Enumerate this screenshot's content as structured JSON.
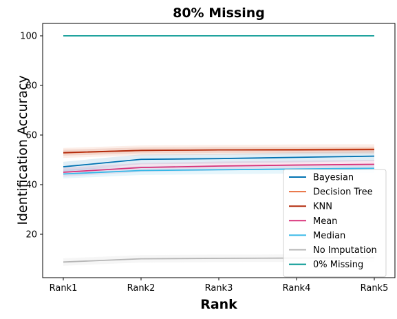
{
  "chart_data": {
    "type": "line",
    "title": "80% Missing",
    "xlabel": "Rank",
    "ylabel": "Identification Accuracy",
    "categories": [
      "Rank1",
      "Rank2",
      "Rank3",
      "Rank4",
      "Rank5"
    ],
    "yticks": [
      20,
      40,
      60,
      80,
      100
    ],
    "ylim": [
      2.5,
      105
    ],
    "grid": false,
    "legend_position": "lower-right",
    "series": [
      {
        "name": "Bayesian",
        "color": "#0072b2",
        "values": [
          47.2,
          50.2,
          50.5,
          51.0,
          51.5
        ],
        "band": 2.0
      },
      {
        "name": "Decision Tree",
        "color": "#e87040",
        "values": [
          52.8,
          53.8,
          54.0,
          54.2,
          54.3
        ],
        "band": 2.0
      },
      {
        "name": "KNN",
        "color": "#b22a0c",
        "values": [
          52.9,
          53.8,
          54.0,
          54.0,
          54.1
        ],
        "band": 1.2
      },
      {
        "name": "Mean",
        "color": "#d8327a",
        "values": [
          45.0,
          46.9,
          47.5,
          47.9,
          48.2
        ],
        "band": 1.8
      },
      {
        "name": "Median",
        "color": "#35b8e8",
        "values": [
          44.3,
          45.7,
          46.0,
          46.3,
          46.6
        ],
        "band": 1.8
      },
      {
        "name": "No Imputation",
        "color": "#b5b5b5",
        "values": [
          8.8,
          10.1,
          10.3,
          10.4,
          10.5
        ],
        "band": 1.5
      },
      {
        "name": "0% Missing",
        "color": "#009690",
        "values": [
          100,
          100,
          100,
          100,
          100
        ],
        "band": 0
      }
    ]
  }
}
